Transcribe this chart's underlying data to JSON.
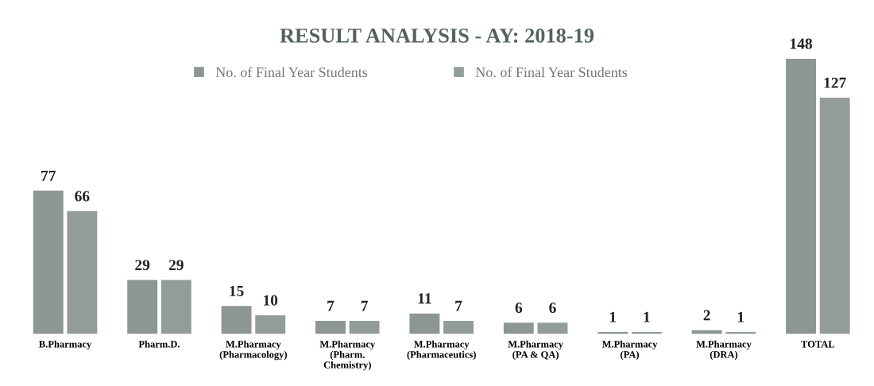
{
  "chart_data": {
    "type": "bar",
    "title": "RESULT ANALYSIS - AY: 2018-19",
    "categories": [
      "B.Pharmacy",
      "Pharm.D.",
      "M.Pharmacy\n(Pharmacology)",
      "M.Pharmacy\n(Pharm.\nChemistry)",
      "M.Pharmacy\n(Pharmaceutics)",
      "M.Pharmacy\n(PA & QA)",
      "M.Pharmacy\n(PA)",
      "M.Pharmacy\n(DRA)",
      "TOTAL"
    ],
    "series": [
      {
        "name": "No. of Final Year Students",
        "color": "#8c9692",
        "values": [
          77,
          29,
          15,
          7,
          11,
          6,
          1,
          2,
          148
        ]
      },
      {
        "name": "No. of Final Year Students",
        "color": "#929c98",
        "values": [
          66,
          29,
          10,
          7,
          7,
          6,
          1,
          1,
          127
        ]
      }
    ],
    "data_labels": true,
    "grid": false,
    "legend": "top"
  }
}
